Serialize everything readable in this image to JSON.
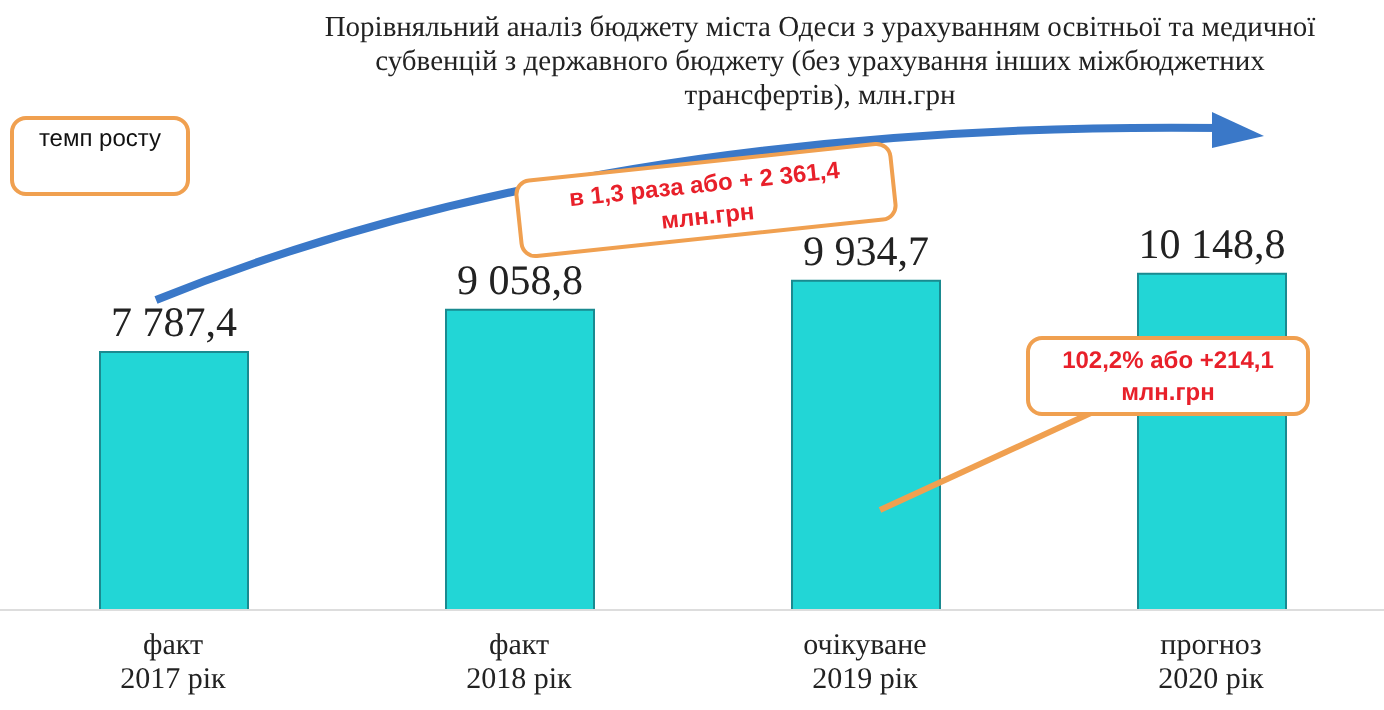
{
  "chart_data": {
    "type": "bar",
    "title": "Порівняльний аналіз бюджету міста Одеси з урахуванням освітньої та медичної субвенцій з державного бюджету (без урахування інших міжбюджетних трансфертів), млн.грн",
    "categories": [
      "факт\n2017 рік",
      "факт\n2018 рік",
      "очікуване\n2019 рік",
      "прогноз\n2020 рік"
    ],
    "values": [
      7787.4,
      9058.8,
      9934.7,
      10148.8
    ],
    "color": "#22d6d6",
    "data_labels": true,
    "value_labels": [
      "7 787,4",
      "9 058,8",
      "9 934,7",
      "10 148,8"
    ],
    "grid": false,
    "legend": false,
    "annotations": [
      "темп росту",
      "в 1,3 раза або + 2 361,4 млн.грн",
      "102,2% або +214,1 млн.грн"
    ]
  }
}
